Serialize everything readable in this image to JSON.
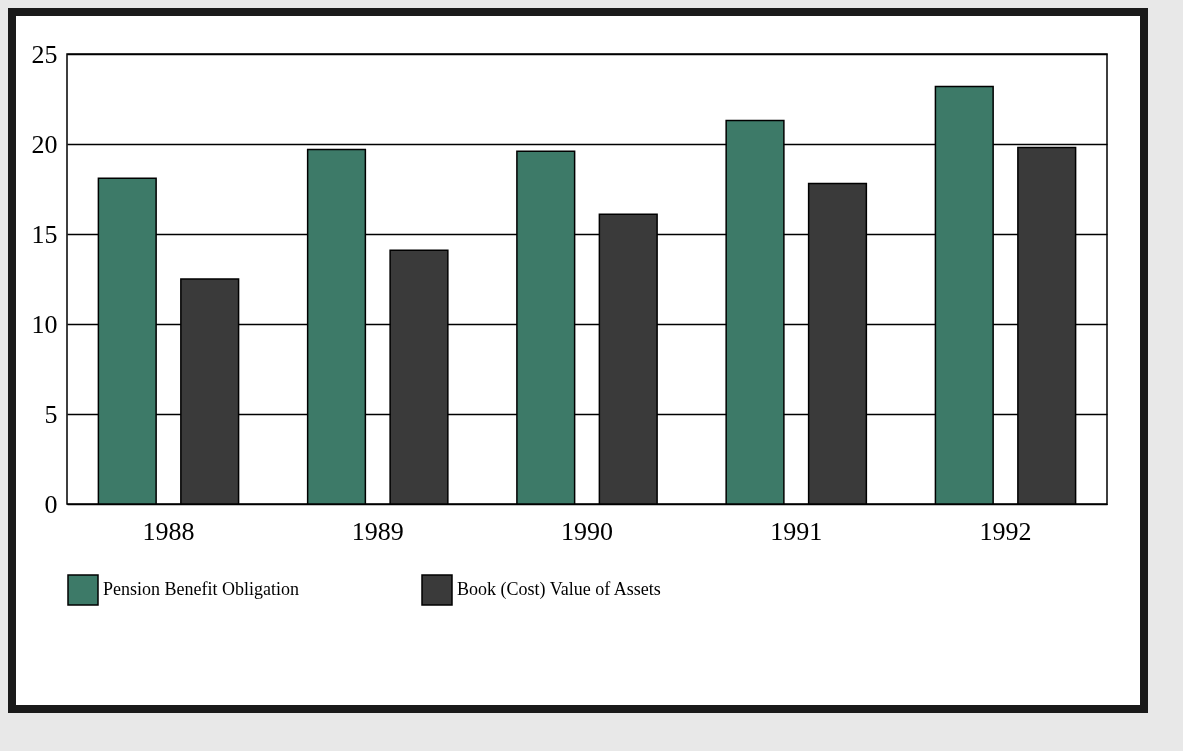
{
  "chart_data": {
    "type": "bar",
    "categories": [
      "1988",
      "1989",
      "1990",
      "1991",
      "1992"
    ],
    "series": [
      {
        "name": "Pension Benefit Obligation",
        "color": "#3d7a68",
        "values": [
          18.1,
          19.7,
          19.6,
          21.3,
          23.2
        ]
      },
      {
        "name": "Book (Cost) Value of Assets",
        "color": "#3a3a3a",
        "values": [
          12.5,
          14.1,
          16.1,
          17.8,
          19.8
        ]
      }
    ],
    "ylim": [
      0,
      25
    ],
    "yticks": [
      0,
      5,
      10,
      15,
      20,
      25
    ],
    "grid": "y",
    "legend": "bottom"
  }
}
